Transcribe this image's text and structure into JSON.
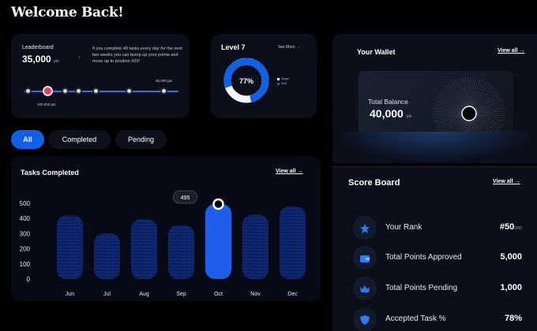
{
  "header": {
    "title": "Welcome Back!"
  },
  "leaderboard": {
    "label": "Leaderboard",
    "points": "35,000",
    "points_unit": "pts",
    "description": "If you complete 40 tasks every day for the next two weeks you can bump up your points and move up to position #29!",
    "track_left_label": "100,000 pts",
    "track_right_label": "35,000 pts"
  },
  "level": {
    "title": "Level 7",
    "see_more": "See More",
    "percent": "77%",
    "legend": [
      "Wager",
      "Sold"
    ],
    "progress": 0.77
  },
  "wallet": {
    "title": "Your Wallet",
    "view_all": "View all",
    "total_label": "Total Balance",
    "balance": "40,000",
    "balance_unit": "pts"
  },
  "filters": {
    "all": "All",
    "completed": "Completed",
    "pending": "Pending"
  },
  "tasks": {
    "title": "Tasks Completed",
    "view_all": "View all",
    "tooltip": "495"
  },
  "chart_data": {
    "type": "bar",
    "title": "Tasks Completed",
    "categories": [
      "Jun",
      "Jul",
      "Aug",
      "Sep",
      "Oct",
      "Nov",
      "Dec"
    ],
    "values": [
      420,
      300,
      395,
      355,
      495,
      425,
      480
    ],
    "ylim": [
      0,
      500
    ],
    "yticks": [
      0,
      100,
      200,
      300,
      400,
      500
    ],
    "highlight": "Oct"
  },
  "score": {
    "title": "Score Board",
    "view_all": "View all",
    "rows": [
      {
        "label": "Your Rank",
        "value": "#50",
        "suffix": "/200"
      },
      {
        "label": "Total Points Approved",
        "value": "5,000",
        "suffix": ""
      },
      {
        "label": "Total Points Pending",
        "value": "1,000",
        "suffix": ""
      },
      {
        "label": "Accepted Task %",
        "value": "78%",
        "suffix": ""
      }
    ]
  },
  "colors": {
    "accent": "#1160e8",
    "background": "#000000",
    "card": "#0a0f19"
  }
}
